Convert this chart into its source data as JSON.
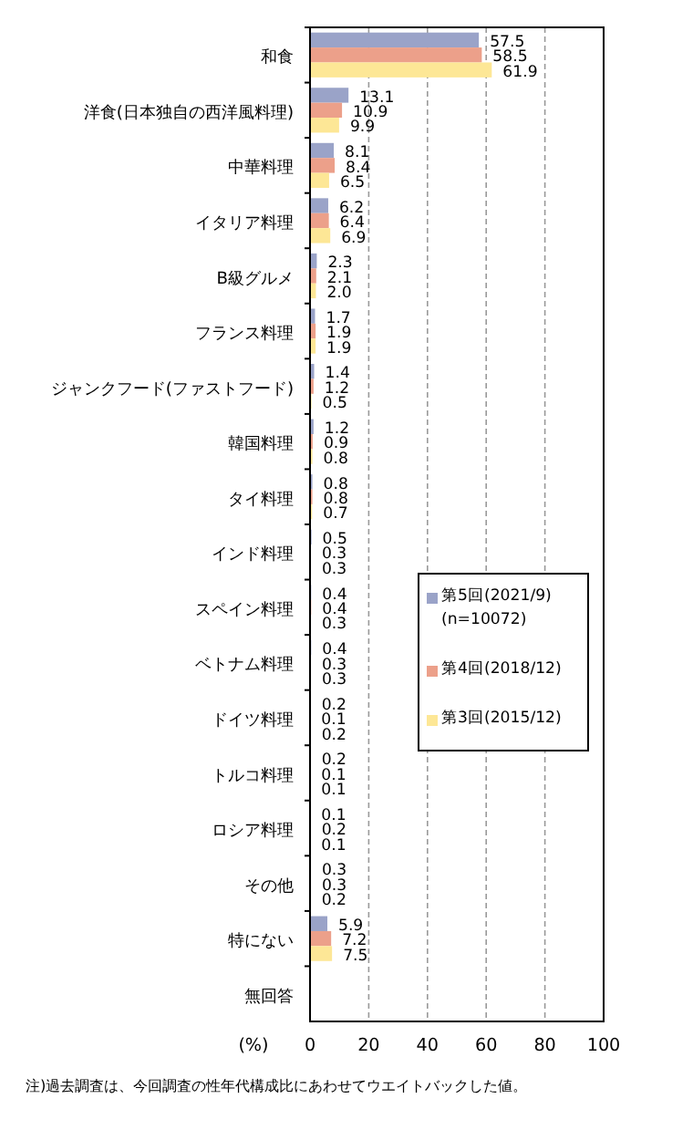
{
  "chart_data": {
    "type": "bar",
    "orientation": "horizontal",
    "categories": [
      "和食",
      "洋食(日本独自の西洋風料理)",
      "中華料理",
      "イタリア料理",
      "B級グルメ",
      "フランス料理",
      "ジャンクフード(ファストフード)",
      "韓国料理",
      "タイ料理",
      "インド料理",
      "スペイン料理",
      "ベトナム料理",
      "ドイツ料理",
      "トルコ料理",
      "ロシア料理",
      "その他",
      "特にない",
      "無回答"
    ],
    "series": [
      {
        "name": "第5回(2021/9) (n=10072)",
        "color": "#9aa3c8",
        "values": [
          57.5,
          13.1,
          8.1,
          6.2,
          2.3,
          1.7,
          1.4,
          1.2,
          0.8,
          0.5,
          0.4,
          0.4,
          0.2,
          0.2,
          0.1,
          0.3,
          5.9,
          null
        ],
        "value_labels": [
          "57.5",
          "13.1",
          "8.1",
          "6.2",
          "2.3",
          "1.7",
          "1.4",
          "1.2",
          "0.8",
          "0.5",
          "0.4",
          "0.4",
          "0.2",
          "0.2",
          "0.1",
          "0.3",
          "5.9",
          null
        ]
      },
      {
        "name": "第4回(2018/12)",
        "color": "#eca08a",
        "values": [
          58.5,
          10.9,
          8.4,
          6.4,
          2.1,
          1.9,
          1.2,
          0.9,
          0.8,
          0.3,
          0.4,
          0.3,
          0.1,
          0.1,
          0.2,
          0.3,
          7.2,
          null
        ],
        "value_labels": [
          "58.5",
          "10.9",
          "8.4",
          "6.4",
          "2.1",
          "1.9",
          "1.2",
          "0.9",
          "0.8",
          "0.3",
          "0.4",
          "0.3",
          "0.1",
          "0.1",
          "0.2",
          "0.3",
          "7.2",
          null
        ]
      },
      {
        "name": "第3回(2015/12)",
        "color": "#fde796",
        "values": [
          61.9,
          9.9,
          6.5,
          6.9,
          2.0,
          1.9,
          0.5,
          0.8,
          0.7,
          0.3,
          0.3,
          0.3,
          0.2,
          0.1,
          0.1,
          0.2,
          7.5,
          null
        ],
        "value_labels": [
          "61.9",
          "9.9",
          "6.5",
          "6.9",
          "2.0",
          "1.9",
          "0.5",
          "0.8",
          "0.7",
          "0.3",
          "0.3",
          "0.3",
          "0.2",
          "0.1",
          "0.1",
          "0.2",
          "7.5",
          null
        ]
      }
    ],
    "xlim": [
      0,
      100
    ],
    "xticks": [
      0,
      20,
      40,
      60,
      80,
      100
    ],
    "xlabel": "(%)",
    "grid": "x",
    "legend": "right",
    "annotations": [
      "注)過去調査は、今回調査の性年代構成比にあわせてウエイトバックした値。"
    ]
  }
}
